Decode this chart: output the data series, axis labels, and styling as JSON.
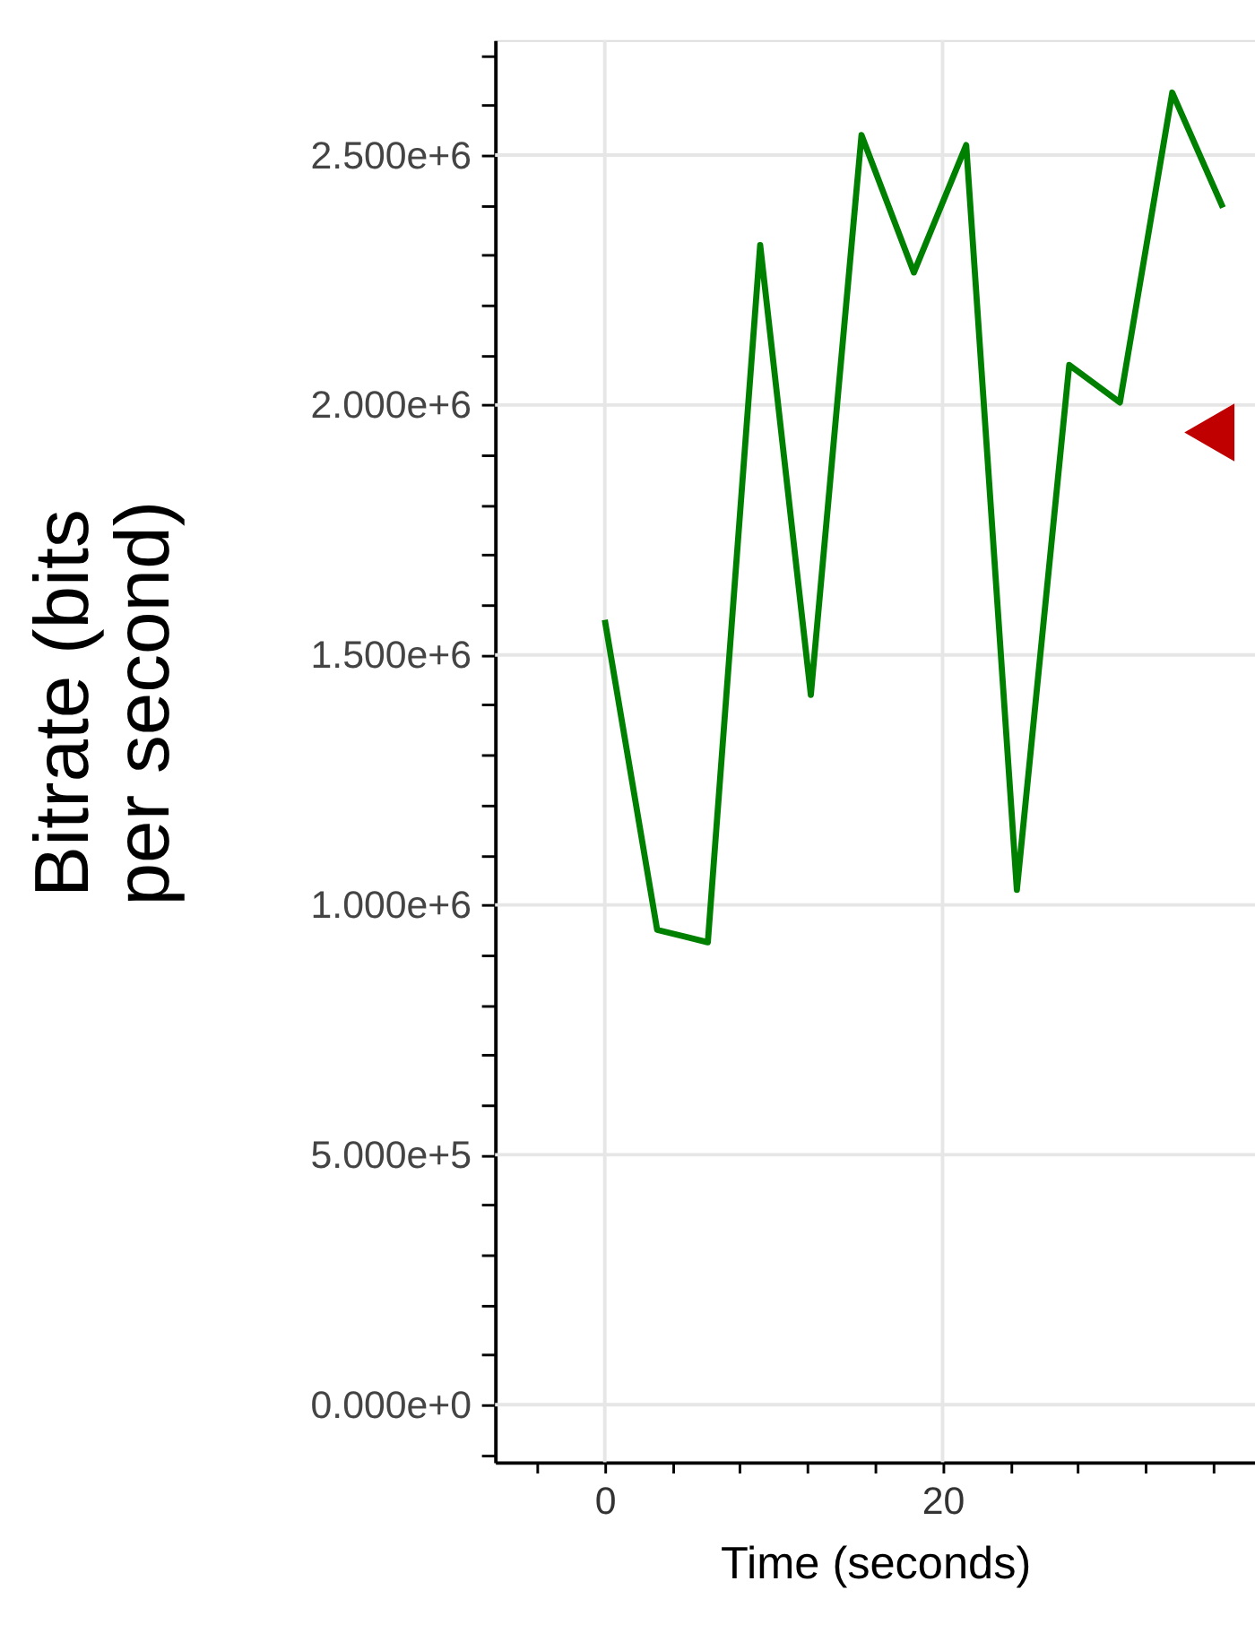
{
  "chart_data": {
    "type": "line",
    "xlabel": "Time (seconds)",
    "ylabel": "Bitrate (bits per second)",
    "xlim": [
      -6.5,
      38.5
    ],
    "xticks": [
      {
        "value": -4,
        "label": null
      },
      0,
      {
        "value": 4,
        "label": null
      },
      {
        "value": 8,
        "label": null
      },
      {
        "value": 12,
        "label": null
      },
      {
        "value": 16,
        "label": null
      },
      20,
      {
        "value": 24,
        "label": null
      },
      {
        "value": 28,
        "label": null
      },
      {
        "value": 32,
        "label": null
      },
      {
        "value": 36,
        "label": null
      }
    ],
    "ylim": [
      -115000,
      2730000
    ],
    "yticks": [
      {
        "value": -100000,
        "label": null
      },
      {
        "value": 0,
        "label": "0.000e+0"
      },
      {
        "value": 100000,
        "label": null
      },
      {
        "value": 200000,
        "label": null
      },
      {
        "value": 300000,
        "label": null
      },
      {
        "value": 400000,
        "label": null
      },
      {
        "value": 500000,
        "label": "5.000e+5"
      },
      {
        "value": 600000,
        "label": null
      },
      {
        "value": 700000,
        "label": null
      },
      {
        "value": 800000,
        "label": null
      },
      {
        "value": 900000,
        "label": null
      },
      {
        "value": 1000000,
        "label": "1.000e+6"
      },
      {
        "value": 1100000,
        "label": null
      },
      {
        "value": 1200000,
        "label": null
      },
      {
        "value": 1300000,
        "label": null
      },
      {
        "value": 1400000,
        "label": null
      },
      {
        "value": 1500000,
        "label": "1.500e+6"
      },
      {
        "value": 1600000,
        "label": null
      },
      {
        "value": 1700000,
        "label": null
      },
      {
        "value": 1800000,
        "label": null
      },
      {
        "value": 1900000,
        "label": null
      },
      {
        "value": 2000000,
        "label": "2.000e+6"
      },
      {
        "value": 2100000,
        "label": null
      },
      {
        "value": 2200000,
        "label": null
      },
      {
        "value": 2300000,
        "label": null
      },
      {
        "value": 2400000,
        "label": null
      },
      {
        "value": 2500000,
        "label": "2.500e+6"
      },
      {
        "value": 2600000,
        "label": null
      },
      {
        "value": 2700000,
        "label": null
      }
    ],
    "grid": true,
    "series": [
      {
        "color": "#008000",
        "x": [
          0,
          3.1,
          6.1,
          9.2,
          12.2,
          15.2,
          18.3,
          21.4,
          24.4,
          27.5,
          30.5,
          33.6,
          36.6
        ],
        "values": [
          1570000,
          950000,
          925000,
          2320000,
          1420000,
          2540000,
          2265000,
          2520000,
          1030000,
          2080000,
          2005000,
          2625000,
          2395000
        ],
        "line_style": "solid",
        "marker": "none"
      },
      {
        "type": "scatter",
        "color": "#c00000",
        "x": [
          35.8
        ],
        "values": [
          1945000
        ],
        "marker": "triangle"
      }
    ]
  }
}
